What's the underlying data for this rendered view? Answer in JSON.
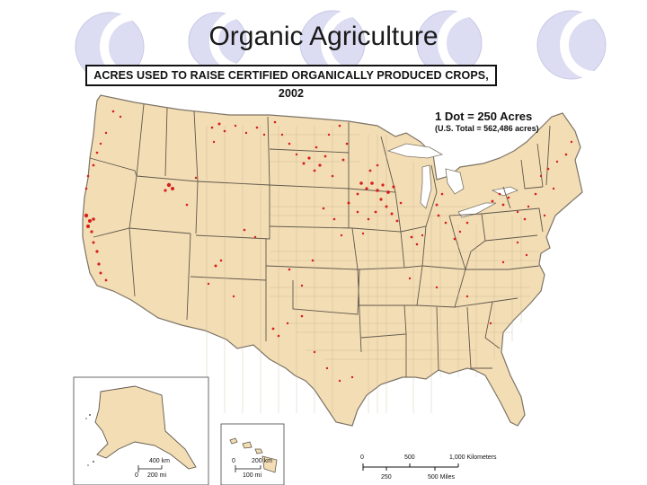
{
  "slide": {
    "title": "Organic Agriculture"
  },
  "map": {
    "title": "ACRES USED TO RAISE CERTIFIED ORGANICALLY PRODUCED CROPS, 2002",
    "legend": {
      "dot_value": "1 Dot = 250 Acres",
      "total": "(U.S. Total = 562,486 acres)"
    },
    "scale_main": {
      "km_labels": [
        "0",
        "500",
        "1,000 Kilometers"
      ],
      "mi_labels": [
        "250",
        "500 Miles"
      ]
    },
    "scale_alaska": {
      "km": "400 km",
      "zero": "0",
      "mi": "200 mi"
    },
    "scale_hawaii": {
      "zero": "0",
      "km": "200 km",
      "mi": "100 mi"
    },
    "colors": {
      "land": "#f3ddb4",
      "dot": "#d6201c",
      "boundary": "#8a8070",
      "deco_circle": "#d9d9f0"
    }
  }
}
